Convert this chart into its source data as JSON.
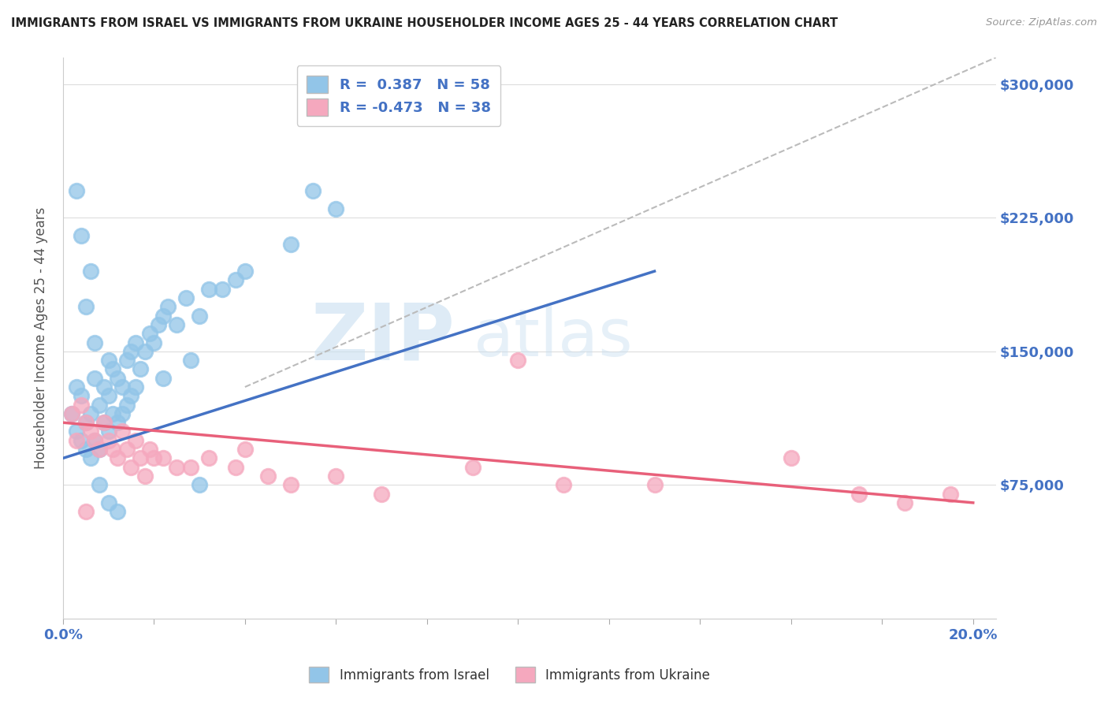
{
  "title": "IMMIGRANTS FROM ISRAEL VS IMMIGRANTS FROM UKRAINE HOUSEHOLDER INCOME AGES 25 - 44 YEARS CORRELATION CHART",
  "source": "Source: ZipAtlas.com",
  "ylabel": "Householder Income Ages 25 - 44 years",
  "xlim": [
    0.0,
    0.205
  ],
  "ylim": [
    0,
    315000
  ],
  "xticks": [
    0.0,
    0.02,
    0.04,
    0.06,
    0.08,
    0.1,
    0.12,
    0.14,
    0.16,
    0.18,
    0.2
  ],
  "xticklabels_show": {
    "0.0": "0.0%",
    "0.20": "20.0%"
  },
  "yticks": [
    0,
    75000,
    150000,
    225000,
    300000
  ],
  "yticklabels": [
    "",
    "$75,000",
    "$150,000",
    "$225,000",
    "$300,000"
  ],
  "israel_color": "#92C5E8",
  "ukraine_color": "#F5A8BE",
  "israel_line_color": "#4472C4",
  "ukraine_line_color": "#E8607A",
  "ref_line_color": "#bbbbbb",
  "israel_R": 0.387,
  "israel_N": 58,
  "ukraine_R": -0.473,
  "ukraine_N": 38,
  "legend_label_israel": "Immigrants from Israel",
  "legend_label_ukraine": "Immigrants from Ukraine",
  "background_color": "#ffffff",
  "grid_color": "#dddddd",
  "title_color": "#222222",
  "axis_label_color": "#555555",
  "tick_label_color": "#4472C4",
  "israel_x": [
    0.002,
    0.003,
    0.003,
    0.004,
    0.004,
    0.005,
    0.005,
    0.005,
    0.006,
    0.006,
    0.007,
    0.007,
    0.007,
    0.008,
    0.008,
    0.009,
    0.009,
    0.01,
    0.01,
    0.01,
    0.011,
    0.011,
    0.012,
    0.012,
    0.013,
    0.013,
    0.014,
    0.014,
    0.015,
    0.015,
    0.016,
    0.016,
    0.017,
    0.018,
    0.019,
    0.02,
    0.021,
    0.022,
    0.023,
    0.025,
    0.027,
    0.03,
    0.032,
    0.035,
    0.038,
    0.04,
    0.022,
    0.028,
    0.05,
    0.06,
    0.003,
    0.004,
    0.006,
    0.008,
    0.01,
    0.012,
    0.03,
    0.055
  ],
  "israel_y": [
    115000,
    105000,
    130000,
    100000,
    125000,
    95000,
    110000,
    175000,
    90000,
    115000,
    135000,
    155000,
    100000,
    95000,
    120000,
    110000,
    130000,
    105000,
    125000,
    145000,
    115000,
    140000,
    110000,
    135000,
    115000,
    130000,
    120000,
    145000,
    125000,
    150000,
    130000,
    155000,
    140000,
    150000,
    160000,
    155000,
    165000,
    170000,
    175000,
    165000,
    180000,
    170000,
    185000,
    185000,
    190000,
    195000,
    135000,
    145000,
    210000,
    230000,
    240000,
    215000,
    195000,
    75000,
    65000,
    60000,
    75000,
    240000
  ],
  "ukraine_x": [
    0.002,
    0.003,
    0.004,
    0.005,
    0.006,
    0.007,
    0.008,
    0.009,
    0.01,
    0.011,
    0.012,
    0.013,
    0.014,
    0.015,
    0.016,
    0.017,
    0.018,
    0.019,
    0.02,
    0.022,
    0.025,
    0.028,
    0.032,
    0.038,
    0.04,
    0.045,
    0.05,
    0.06,
    0.07,
    0.09,
    0.1,
    0.11,
    0.13,
    0.16,
    0.175,
    0.185,
    0.195,
    0.005
  ],
  "ukraine_y": [
    115000,
    100000,
    120000,
    110000,
    105000,
    100000,
    95000,
    110000,
    100000,
    95000,
    90000,
    105000,
    95000,
    85000,
    100000,
    90000,
    80000,
    95000,
    90000,
    90000,
    85000,
    85000,
    90000,
    85000,
    95000,
    80000,
    75000,
    80000,
    70000,
    85000,
    145000,
    75000,
    75000,
    90000,
    70000,
    65000,
    70000,
    60000
  ],
  "israel_line_x": [
    0.0,
    0.13
  ],
  "israel_line_y": [
    90000,
    195000
  ],
  "ukraine_line_x": [
    0.0,
    0.2
  ],
  "ukraine_line_y": [
    110000,
    65000
  ],
  "ref_line_x": [
    0.04,
    0.205
  ],
  "ref_line_y": [
    130000,
    315000
  ]
}
